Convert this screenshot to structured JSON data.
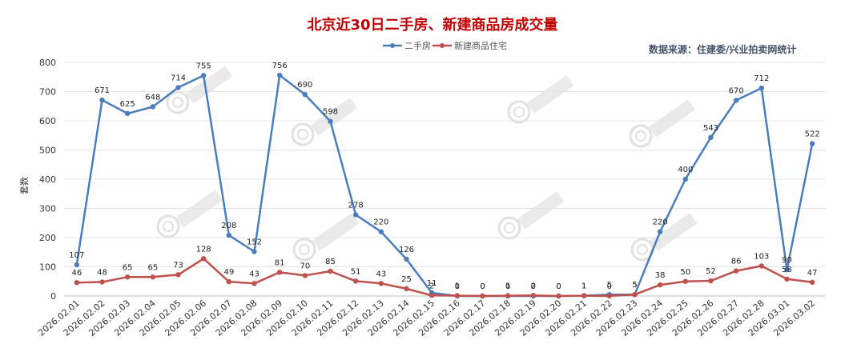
{
  "chart_data": {
    "type": "line",
    "title": "北京近30日二手房、新建商品房成交量",
    "source_text": "数据来源：住建委/兴业拍卖网统计",
    "ylabel": "套数",
    "xlabel": "",
    "ylim": [
      0,
      800
    ],
    "yticks": [
      0,
      100,
      200,
      300,
      400,
      500,
      600,
      700,
      800
    ],
    "grid": "horizontal",
    "legend_position": "top-center",
    "categories": [
      "2026.02.01",
      "2026.02.02",
      "2026.02.03",
      "2026.02.04",
      "2026.02.05",
      "2026.02.06",
      "2026.02.07",
      "2026.02.08",
      "2026.02.09",
      "2026.02.10",
      "2026.02.11",
      "2026.02.12",
      "2026.02.13",
      "2026.02.14",
      "2026.02.15",
      "2026.02.16",
      "2026.02.17",
      "2026.02.18",
      "2026.02.19",
      "2026.02.20",
      "2026.02.21",
      "2026.02.22",
      "2026.02.23",
      "2026.02.24",
      "2026.02.25",
      "2026.02.26",
      "2026.02.27",
      "2026.02.28",
      "2026.03.01",
      "2026.03.02"
    ],
    "series": [
      {
        "name": "二手房",
        "color": "#4a7ebb",
        "values": [
          107,
          671,
          625,
          648,
          714,
          755,
          208,
          152,
          756,
          690,
          598,
          278,
          220,
          126,
          11,
          0,
          0,
          0,
          0,
          0,
          1,
          5,
          5,
          220,
          400,
          543,
          670,
          712,
          90,
          522
        ]
      },
      {
        "name": "新建商品住宅",
        "color": "#c0504d",
        "values": [
          46,
          48,
          65,
          65,
          73,
          128,
          49,
          43,
          81,
          70,
          85,
          51,
          43,
          25,
          2,
          1,
          0,
          1,
          2,
          0,
          1,
          0,
          5,
          38,
          50,
          52,
          86,
          103,
          58,
          47
        ]
      }
    ]
  }
}
